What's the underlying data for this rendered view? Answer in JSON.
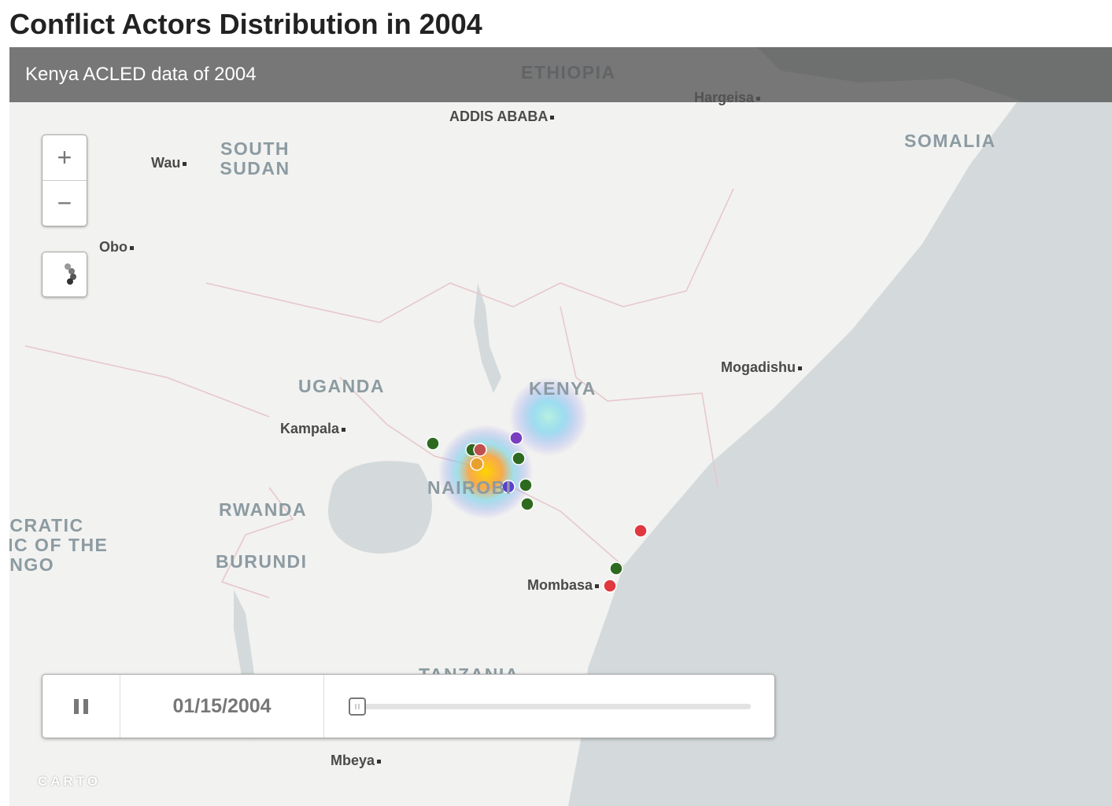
{
  "title": "Conflict Actors Distribution in 2004",
  "map": {
    "header": "Kenya ACLED data of 2004",
    "labels": [
      "ETHIOPIA",
      "Hargeisa",
      "ADDIS ABABA",
      "SOMALIA",
      "SOUTH SUDAN",
      "Wau",
      "Obo",
      "Mogadishu",
      "UGANDA",
      "KENYA",
      "Kampala",
      "NAIROBI",
      "RWANDA",
      "DEMOCRATIC REPUBLIC OF THE CONGO",
      "BURUNDI",
      "Mombasa",
      "TANZANIA",
      "Mbeya"
    ],
    "zoom_in": "+",
    "zoom_out": "−",
    "timeline": {
      "date": "01/15/2004"
    },
    "attribution": "CARTO"
  }
}
